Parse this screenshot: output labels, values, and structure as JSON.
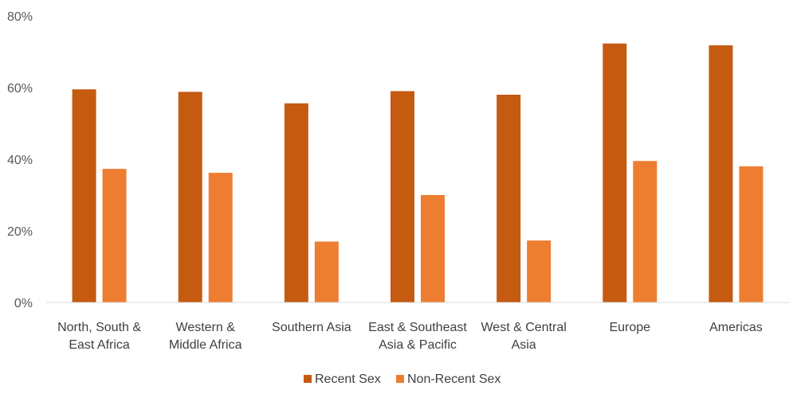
{
  "chart_data": {
    "type": "bar",
    "title": "",
    "xlabel": "",
    "ylabel": "",
    "ylim": [
      0,
      80
    ],
    "y_ticks": [
      "0%",
      "20%",
      "40%",
      "60%",
      "80%"
    ],
    "y_tick_values": [
      0,
      20,
      40,
      60,
      80
    ],
    "categories": [
      [
        "North, South &",
        "East Africa"
      ],
      [
        "Western &",
        "Middle Africa"
      ],
      [
        "Southern Asia"
      ],
      [
        "East & Southeast",
        "Asia & Pacific"
      ],
      [
        "West & Central",
        "Asia"
      ],
      [
        "Europe"
      ],
      [
        "Americas"
      ]
    ],
    "series": [
      {
        "name": "Recent Sex",
        "color": "#C55A11",
        "values": [
          59.5,
          58.8,
          55.6,
          59.0,
          58.0,
          72.3,
          71.8
        ]
      },
      {
        "name": "Non-Recent Sex",
        "color": "#ED7D31",
        "values": [
          37.3,
          36.2,
          17.0,
          30.0,
          17.3,
          39.5,
          38.0
        ]
      }
    ],
    "grid": false,
    "legend_position": "bottom"
  }
}
